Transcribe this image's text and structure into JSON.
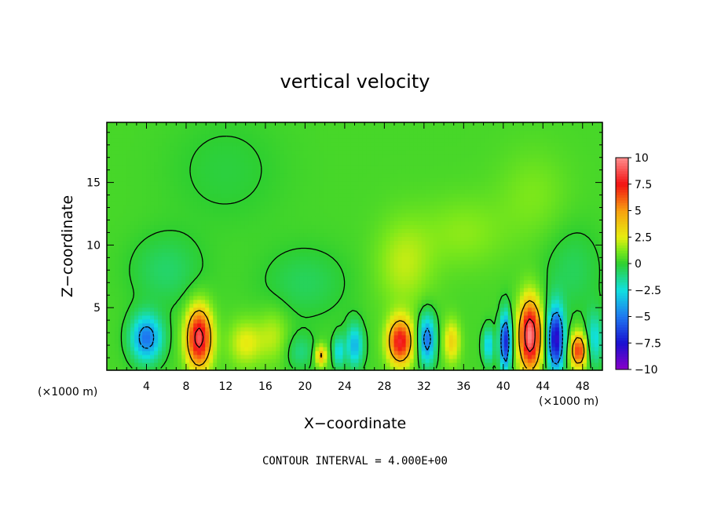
{
  "chart_data": {
    "type": "heatmap",
    "title": "vertical velocity",
    "xlabel": "X−coordinate",
    "ylabel": "Z−coordinate",
    "x_unit_left": "(×1000 m)",
    "x_unit_right": "(×1000 m)",
    "footer": "CONTOUR INTERVAL = 4.000E+00",
    "xlim": [
      0,
      50
    ],
    "ylim": [
      0,
      19.8
    ],
    "x_ticks": [
      4,
      8,
      12,
      16,
      20,
      24,
      28,
      32,
      36,
      40,
      44,
      48
    ],
    "x_tick_labels": [
      "4",
      "8",
      "12",
      "16",
      "20",
      "24",
      "28",
      "32",
      "36",
      "40",
      "44",
      "48"
    ],
    "y_ticks": [
      5,
      10,
      15
    ],
    "y_tick_labels": [
      "5",
      "10",
      "15"
    ],
    "colorbar": {
      "min": -10,
      "max": 10,
      "ticks": [
        10,
        7.5,
        5,
        2.5,
        0,
        -2.5,
        -5,
        -7.5,
        -10
      ],
      "tick_labels": [
        "10",
        "7.5",
        "5",
        "2.5",
        "0",
        "−2.5",
        "−5",
        "−7.5",
        "−10"
      ],
      "colors": [
        {
          "v": -10,
          "c": "#8a00c8"
        },
        {
          "v": -7.5,
          "c": "#1a10d0"
        },
        {
          "v": -5,
          "c": "#1e78f0"
        },
        {
          "v": -2.5,
          "c": "#10e0e0"
        },
        {
          "v": 0,
          "c": "#2ecf30"
        },
        {
          "v": 1.25,
          "c": "#7de81a"
        },
        {
          "v": 2.5,
          "c": "#e6ee10"
        },
        {
          "v": 5,
          "c": "#f7a010"
        },
        {
          "v": 7.5,
          "c": "#f21212"
        },
        {
          "v": 10,
          "c": "#ff8c8c"
        }
      ]
    },
    "background_value": 0.4,
    "features": [
      {
        "x": 4.0,
        "z": 2.6,
        "sx": 1.1,
        "sz": 1.3,
        "w": -5.5
      },
      {
        "x": 9.3,
        "z": 2.6,
        "sx": 0.9,
        "sz": 1.7,
        "w": 8.5
      },
      {
        "x": 14.0,
        "z": 2.2,
        "sx": 1.2,
        "sz": 1.3,
        "w": 2.2
      },
      {
        "x": 16.8,
        "z": 2.8,
        "sx": 1.1,
        "sz": 1.5,
        "w": 1.5
      },
      {
        "x": 19.5,
        "z": 1.5,
        "sx": 1.0,
        "sz": 1.0,
        "w": -1.5
      },
      {
        "x": 21.6,
        "z": 1.2,
        "sx": 0.4,
        "sz": 0.6,
        "w": 4.0
      },
      {
        "x": 23.4,
        "z": 1.5,
        "sx": 0.4,
        "sz": 0.9,
        "w": -3.0
      },
      {
        "x": 25.0,
        "z": 2.0,
        "sx": 0.6,
        "sz": 1.2,
        "w": -4.0
      },
      {
        "x": 29.6,
        "z": 2.3,
        "sx": 0.9,
        "sz": 1.3,
        "w": 7.5
      },
      {
        "x": 32.3,
        "z": 2.5,
        "sx": 0.6,
        "sz": 1.4,
        "w": -5.5
      },
      {
        "x": 34.8,
        "z": 2.3,
        "sx": 0.6,
        "sz": 1.2,
        "w": 3.0
      },
      {
        "x": 38.5,
        "z": 2.0,
        "sx": 0.4,
        "sz": 1.0,
        "w": -3.5
      },
      {
        "x": 40.2,
        "z": 2.3,
        "sx": 0.4,
        "sz": 1.6,
        "w": -7.5
      },
      {
        "x": 42.7,
        "z": 2.8,
        "sx": 0.8,
        "sz": 2.0,
        "w": 9.5
      },
      {
        "x": 45.3,
        "z": 2.5,
        "sx": 0.6,
        "sz": 1.8,
        "w": -8.5
      },
      {
        "x": 47.6,
        "z": 1.6,
        "sx": 0.6,
        "sz": 1.0,
        "w": 6.5
      },
      {
        "x": 49.2,
        "z": 2.5,
        "sx": 0.6,
        "sz": 1.5,
        "w": -3.0
      },
      {
        "x": 30.0,
        "z": 8.5,
        "sx": 2.0,
        "sz": 2.5,
        "w": 1.6
      },
      {
        "x": 20.0,
        "z": 7.0,
        "sx": 3.0,
        "sz": 2.0,
        "w": -1.0
      },
      {
        "x": 36.0,
        "z": 11.0,
        "sx": 3.0,
        "sz": 2.0,
        "w": 1.0
      },
      {
        "x": 6.0,
        "z": 8.0,
        "sx": 2.5,
        "sz": 2.0,
        "w": -1.2
      },
      {
        "x": 43.0,
        "z": 14.0,
        "sx": 2.5,
        "sz": 2.5,
        "w": 0.8
      },
      {
        "x": 12.0,
        "z": 16.0,
        "sx": 4.0,
        "sz": 3.0,
        "w": -0.6
      },
      {
        "x": 47.0,
        "z": 8.0,
        "sx": 2.0,
        "sz": 2.5,
        "w": -1.0
      }
    ]
  }
}
